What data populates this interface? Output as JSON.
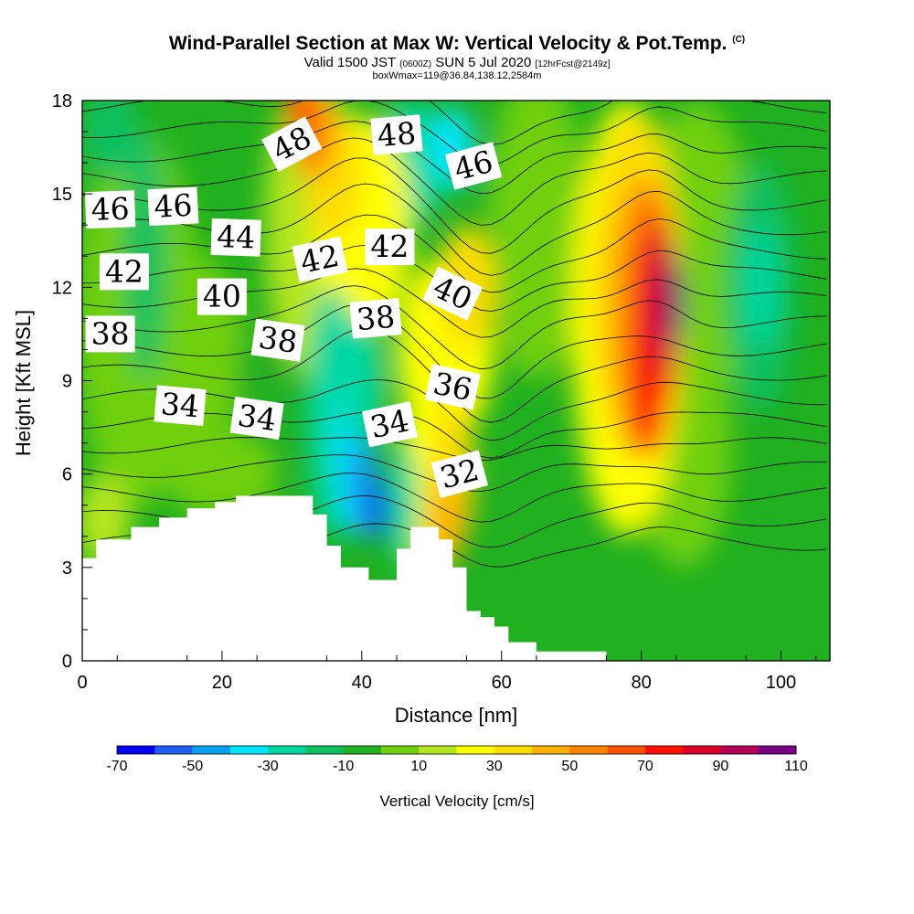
{
  "chart_data": {
    "type": "contour",
    "title": "Wind-Parallel Section at Max W: Vertical Velocity & Pot.Temp.",
    "title_mark": "(C)",
    "subtitle_main_a": "Valid 1500 JST",
    "subtitle_small_a": "(0600Z)",
    "subtitle_main_b": "SUN 5 Jul 2020",
    "subtitle_small_b": "[12hrFcst@2149z]",
    "subtitle_line3": "boxWmax=119@36.84,138.12,2584m",
    "xlabel": "Distance [nm]",
    "ylabel": "Height [Kft MSL]",
    "xlim": [
      0,
      107
    ],
    "ylim": [
      0,
      18
    ],
    "x_ticks": [
      "0",
      "20",
      "40",
      "60",
      "80",
      "100"
    ],
    "y_ticks": [
      "0",
      "3",
      "6",
      "9",
      "12",
      "15",
      "18"
    ],
    "colorbar": {
      "label": "Vertical Velocity [cm/s]",
      "tick_labels": [
        "-70",
        "-50",
        "-30",
        "-10",
        "10",
        "30",
        "50",
        "70",
        "90",
        "110"
      ],
      "colors": [
        "#0000f0",
        "#1e5ff5",
        "#0aa0f0",
        "#00e6ff",
        "#00d7a0",
        "#10c060",
        "#20b020",
        "#70d010",
        "#b4e61e",
        "#ffff00",
        "#ffdc00",
        "#ffaf00",
        "#ff8200",
        "#ff5000",
        "#ff1000",
        "#dc0028",
        "#b40055",
        "#780082"
      ]
    },
    "contour_labels": [
      {
        "text": "46",
        "x": 4,
        "y": 14.5,
        "rot": -2
      },
      {
        "text": "46",
        "x": 13,
        "y": 14.6,
        "rot": -3
      },
      {
        "text": "44",
        "x": 22,
        "y": 13.6,
        "rot": 2
      },
      {
        "text": "48",
        "x": 30,
        "y": 16.6,
        "rot": -28
      },
      {
        "text": "48",
        "x": 45,
        "y": 16.9,
        "rot": -5
      },
      {
        "text": "46",
        "x": 56,
        "y": 15.9,
        "rot": -15
      },
      {
        "text": "42",
        "x": 6,
        "y": 12.5,
        "rot": 0
      },
      {
        "text": "40",
        "x": 20,
        "y": 11.7,
        "rot": 0
      },
      {
        "text": "42",
        "x": 34,
        "y": 12.9,
        "rot": -12
      },
      {
        "text": "42",
        "x": 44,
        "y": 13.3,
        "rot": 0
      },
      {
        "text": "40",
        "x": 53,
        "y": 11.8,
        "rot": 25
      },
      {
        "text": "38",
        "x": 4,
        "y": 10.5,
        "rot": 0
      },
      {
        "text": "38",
        "x": 28,
        "y": 10.3,
        "rot": 8
      },
      {
        "text": "38",
        "x": 42,
        "y": 11.0,
        "rot": -5
      },
      {
        "text": "36",
        "x": 53,
        "y": 8.8,
        "rot": 12
      },
      {
        "text": "34",
        "x": 14,
        "y": 8.2,
        "rot": 5
      },
      {
        "text": "34",
        "x": 25,
        "y": 7.8,
        "rot": 8
      },
      {
        "text": "34",
        "x": 44,
        "y": 7.6,
        "rot": -12
      },
      {
        "text": "32",
        "x": 54,
        "y": 6.0,
        "rot": -15
      }
    ],
    "terrain_profile_kft": [
      [
        0,
        3.3
      ],
      [
        2,
        3.3
      ],
      [
        2,
        3.9
      ],
      [
        7,
        3.9
      ],
      [
        7,
        4.3
      ],
      [
        11,
        4.3
      ],
      [
        11,
        4.6
      ],
      [
        15,
        4.6
      ],
      [
        15,
        4.9
      ],
      [
        19,
        4.9
      ],
      [
        19,
        5.1
      ],
      [
        22,
        5.1
      ],
      [
        22,
        5.3
      ],
      [
        26,
        5.3
      ],
      [
        26,
        5.3
      ],
      [
        33,
        5.3
      ],
      [
        33,
        4.7
      ],
      [
        35,
        4.7
      ],
      [
        35,
        3.7
      ],
      [
        37,
        3.7
      ],
      [
        37,
        3.0
      ],
      [
        41,
        3.0
      ],
      [
        41,
        2.6
      ],
      [
        45,
        2.6
      ],
      [
        45,
        3.6
      ],
      [
        47,
        3.6
      ],
      [
        47,
        4.3
      ],
      [
        51,
        4.3
      ],
      [
        51,
        3.9
      ],
      [
        53,
        3.9
      ],
      [
        53,
        3.0
      ],
      [
        55,
        3.0
      ],
      [
        55,
        1.6
      ],
      [
        57,
        1.6
      ],
      [
        57,
        1.4
      ],
      [
        59,
        1.4
      ],
      [
        59,
        1.1
      ],
      [
        61,
        1.1
      ],
      [
        61,
        0.6
      ],
      [
        65,
        0.6
      ],
      [
        65,
        0.3
      ],
      [
        75,
        0.3
      ]
    ],
    "potential_temperature_levels": [
      31,
      32,
      33,
      34,
      35,
      36,
      37,
      38,
      39,
      40,
      41,
      42,
      43,
      44,
      45,
      46,
      47,
      48,
      49
    ]
  }
}
